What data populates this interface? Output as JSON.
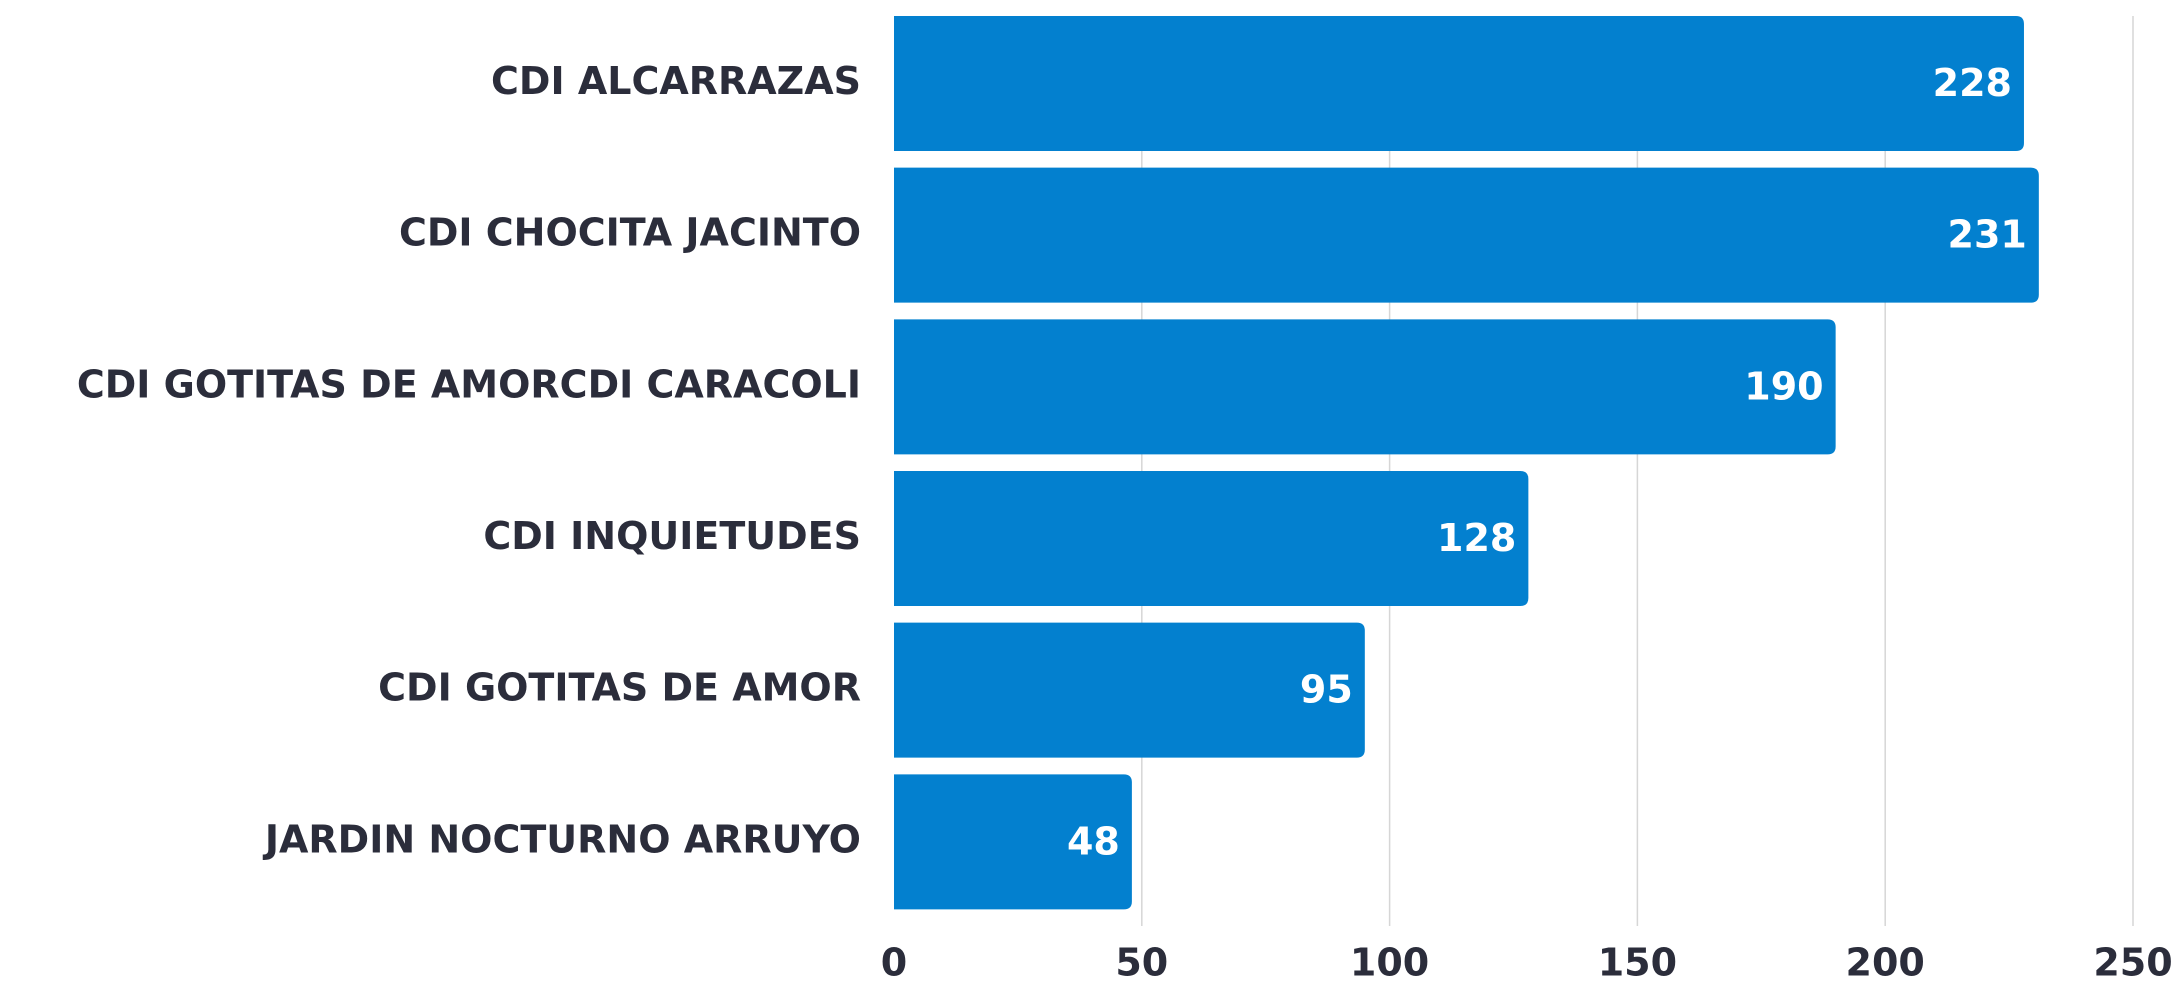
{
  "chart_data": {
    "type": "hbar",
    "categories": [
      "CDI ALCARRAZAS",
      "CDI CHOCITA JACINTO",
      "CDI GOTITAS DE AMORCDI CARACOLI",
      "CDI INQUIETUDES",
      "CDI GOTITAS DE AMOR",
      "JARDIN NOCTURNO ARRUYO"
    ],
    "values": [
      228,
      231,
      190,
      128,
      95,
      48
    ],
    "color": "#0380cf",
    "xlim": [
      0,
      250
    ],
    "xticks": [
      0,
      50,
      100,
      150,
      200,
      250
    ],
    "grid": true
  }
}
